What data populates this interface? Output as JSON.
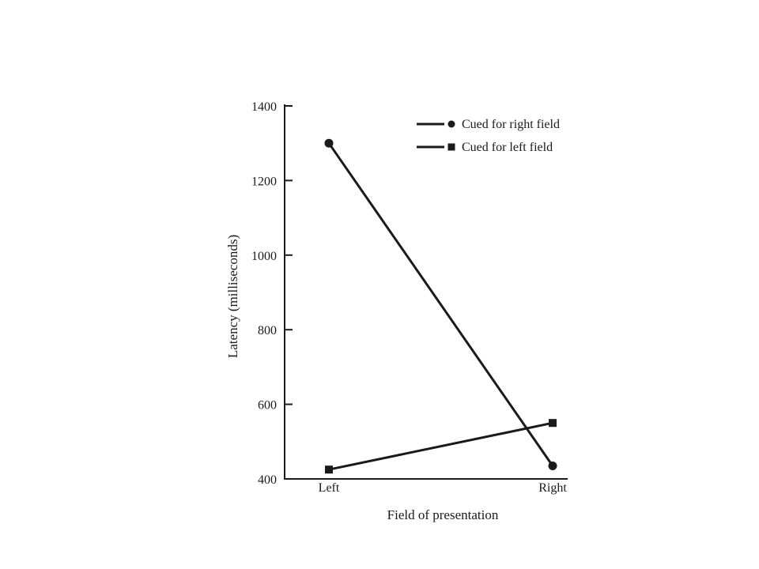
{
  "chart_data": {
    "type": "line",
    "title": "",
    "xlabel": "Field of presentation",
    "ylabel": "Latency (milliseconds)",
    "categories": [
      "Left",
      "Right"
    ],
    "ylim": [
      400,
      1400
    ],
    "yticks": [
      400,
      600,
      800,
      1000,
      1200,
      1400
    ],
    "grid": false,
    "legend_position": "top-right",
    "series": [
      {
        "name": "Cued for right field",
        "marker": "circle",
        "color": "#1a1a1a",
        "values": [
          1300,
          435
        ]
      },
      {
        "name": "Cued for left field",
        "marker": "square",
        "color": "#1a1a1a",
        "values": [
          425,
          550
        ]
      }
    ]
  }
}
